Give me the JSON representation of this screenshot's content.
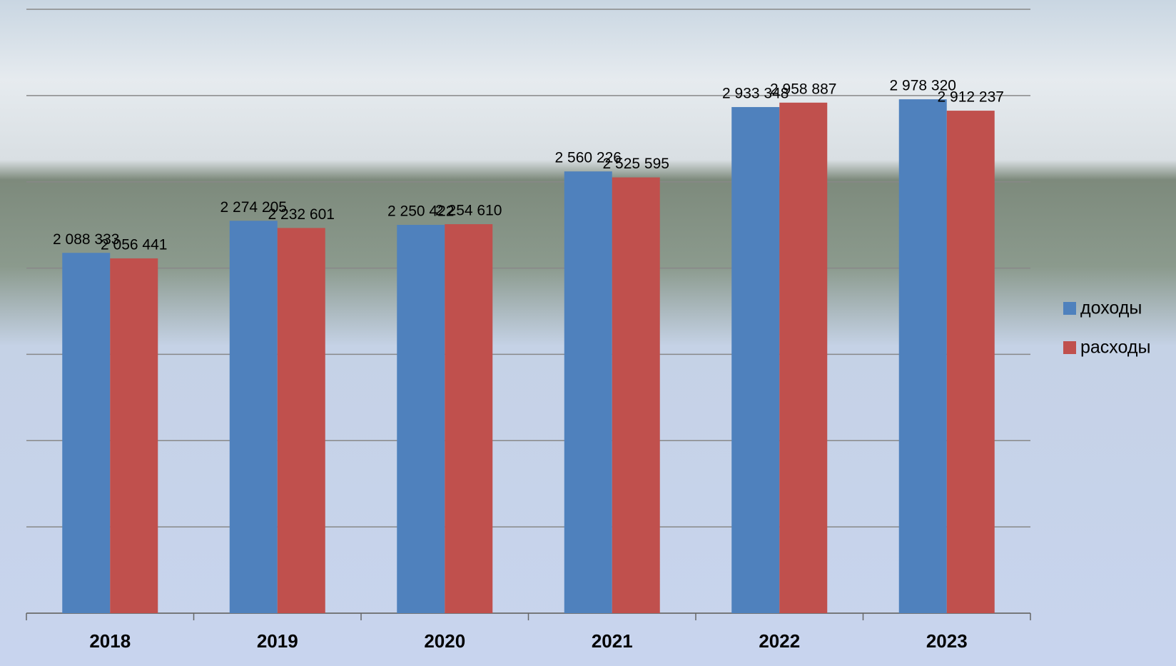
{
  "chart_data": {
    "type": "bar",
    "categories": [
      "2018",
      "2019",
      "2020",
      "2021",
      "2022",
      "2023"
    ],
    "series": [
      {
        "name": "доходы",
        "color": "#4f81bd",
        "values": [
          2088333,
          2274205,
          2250422,
          2560226,
          2933348,
          2978320
        ],
        "value_labels": [
          "2 088 333",
          "2 274 205",
          "2 250 422",
          "2 560 226",
          "2 933 348",
          "2 978 320"
        ]
      },
      {
        "name": "расходы",
        "color": "#c0504d",
        "values": [
          2056441,
          2232601,
          2254610,
          2525595,
          2958887,
          2912237
        ],
        "value_labels": [
          "2 056 441",
          "2 232 601",
          "2 254 610",
          "2 525 595",
          "2 958 887",
          "2 912 237"
        ]
      }
    ],
    "ylim": [
      0,
      3500000
    ],
    "yticks": [
      0,
      500000,
      1000000,
      1500000,
      2000000,
      2500000,
      3000000,
      3500000
    ],
    "grid": true,
    "legend": "right"
  }
}
